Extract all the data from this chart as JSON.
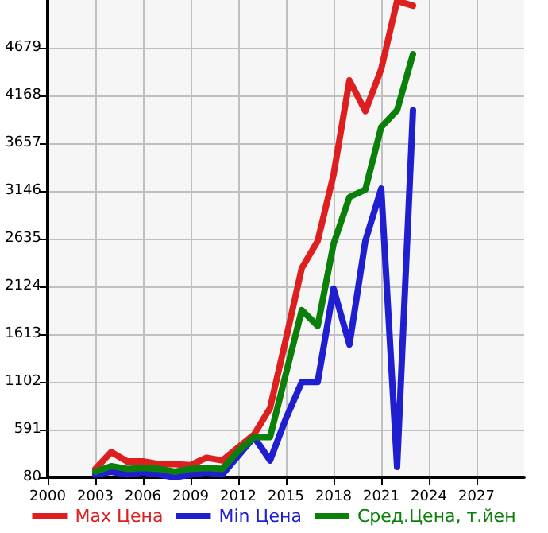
{
  "chart_data": {
    "type": "line",
    "x": [
      2003,
      2004,
      2005,
      2006,
      2007,
      2008,
      2009,
      2010,
      2011,
      2012,
      2013,
      2014,
      2015,
      2016,
      2017,
      2018,
      2019,
      2020,
      2021,
      2022,
      2023
    ],
    "series": [
      {
        "name": "Max Цена",
        "color": "#dd1f1f",
        "values": [
          170,
          350,
          250,
          250,
          220,
          220,
          210,
          290,
          260,
          400,
          540,
          820,
          1560,
          2320,
          2610,
          3320,
          4330,
          4000,
          4450,
          5180,
          5130
        ]
      },
      {
        "name": "Min Цена",
        "color": "#1f1fd0",
        "values": [
          110,
          140,
          110,
          130,
          110,
          80,
          110,
          130,
          110,
          310,
          510,
          260,
          710,
          1100,
          1100,
          2100,
          1500,
          2610,
          3170,
          190,
          4010
        ]
      },
      {
        "name": "Сред.Цена, т.йен",
        "color": "#0a800a",
        "values": [
          140,
          200,
          170,
          180,
          170,
          140,
          170,
          180,
          170,
          360,
          510,
          510,
          1190,
          1870,
          1700,
          2580,
          3080,
          3160,
          3830,
          4010,
          4610
        ]
      }
    ],
    "xlim": [
      2000,
      2030
    ],
    "xticks": [
      2000,
      2003,
      2006,
      2009,
      2012,
      2015,
      2018,
      2021,
      2024,
      2027
    ],
    "ylim": [
      80,
      5190
    ],
    "yticks": [
      80,
      591,
      1102,
      1613,
      2124,
      2635,
      3146,
      3657,
      4168,
      4679
    ],
    "grid": true,
    "legend": "bottom",
    "marker": "none",
    "line_style": "solid"
  }
}
